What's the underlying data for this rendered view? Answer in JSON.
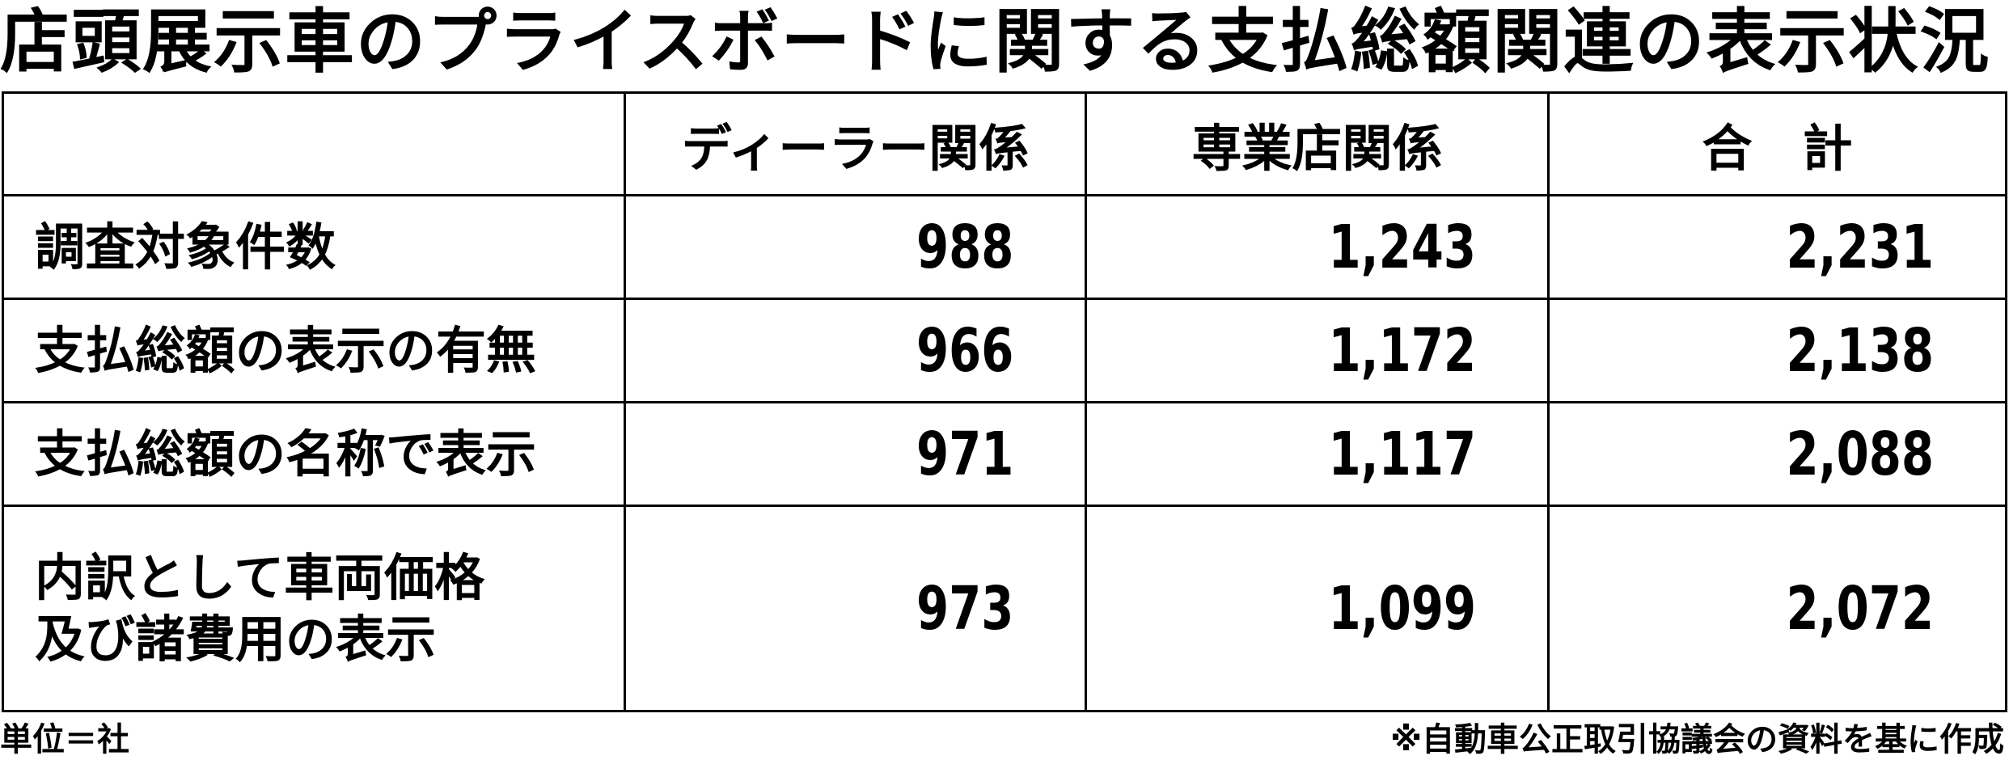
{
  "title": "店頭展示車のプライスボードに関する支払総額関連の表示状況",
  "table": {
    "headers": [
      "",
      "ディーラー関係",
      "専業店関係",
      "合　計"
    ],
    "rows": [
      {
        "label": "調査対象件数",
        "values": [
          "988",
          "1,243",
          "2,231"
        ]
      },
      {
        "label": "支払総額の表示の有無",
        "values": [
          "966",
          "1,172",
          "2,138"
        ]
      },
      {
        "label": "支払総額の名称で表示",
        "values": [
          "971",
          "1,117",
          "2,088"
        ]
      },
      {
        "label_lines": [
          "内訳として車両価格",
          "及び諸費用の表示"
        ],
        "values": [
          "973",
          "1,099",
          "2,072"
        ]
      }
    ]
  },
  "footer": {
    "unit": "単位＝社",
    "source": "※自動車公正取引協議会の資料を基に作成"
  }
}
